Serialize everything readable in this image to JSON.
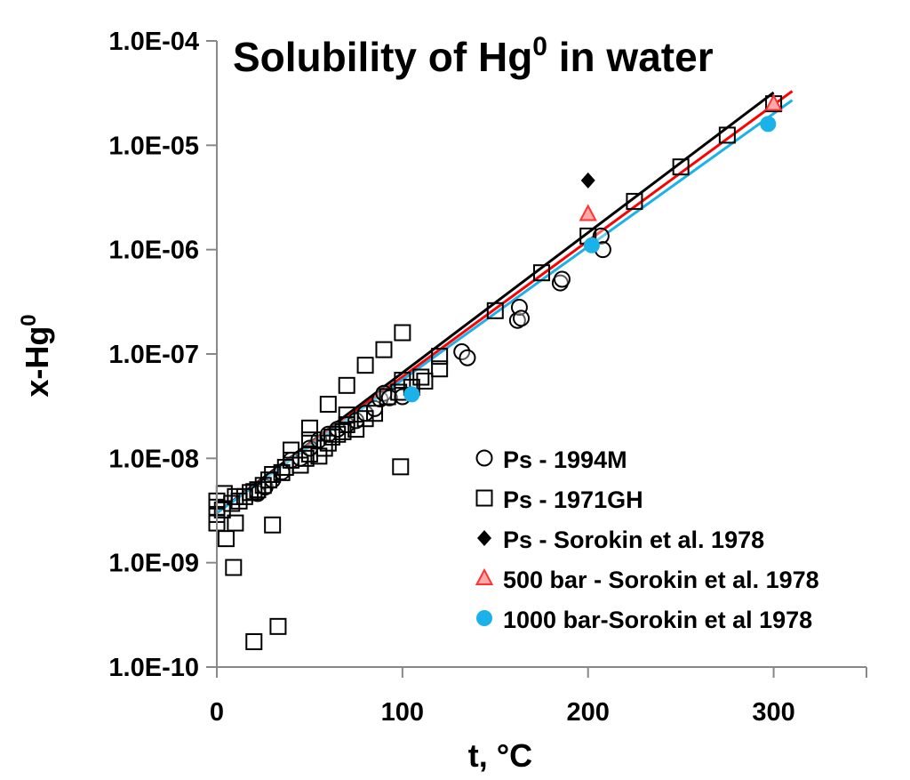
{
  "chart_data": {
    "type": "scatter",
    "title_main": "Solubility of Hg",
    "title_sup": "0",
    "title_end": " in water",
    "title_color": "#cc00cc",
    "xlabel": "t, °C",
    "ylabel_main": "x-Hg",
    "ylabel_sup": "0",
    "xlim": [
      0,
      350
    ],
    "ylim": [
      1e-10,
      0.0001
    ],
    "y_scale": "log",
    "x_ticks": [
      0,
      100,
      200,
      300
    ],
    "x_tick_labels": [
      "0",
      "100",
      "200",
      "300"
    ],
    "y_ticks": [
      1e-10,
      1e-09,
      1e-08,
      1e-07,
      1e-06,
      1e-05,
      0.0001
    ],
    "y_tick_labels": [
      "1.0E-10",
      "1.0E-09",
      "1.0E-08",
      "1.0E-07",
      "1.0E-06",
      "1.0E-05",
      "1.0E-04"
    ],
    "grid": false,
    "legend_position": "bottom-right",
    "series": [
      {
        "name": "Ps - 1994M",
        "marker": "open-circle",
        "color": "#000000",
        "points": [
          [
            22,
            4.6e-09
          ],
          [
            26,
            5.3e-09
          ],
          [
            30,
            6.2e-09
          ],
          [
            35,
            7.4e-09
          ],
          [
            40,
            9.6e-09
          ],
          [
            45,
            1e-08
          ],
          [
            50,
            1.25e-08
          ],
          [
            55,
            1.5e-08
          ],
          [
            60,
            1.7e-08
          ],
          [
            65,
            1.9e-08
          ],
          [
            70,
            2.1e-08
          ],
          [
            75,
            2.3e-08
          ],
          [
            80,
            2.7e-08
          ],
          [
            85,
            3e-08
          ],
          [
            88,
            3.7e-08
          ],
          [
            90,
            4.2e-08
          ],
          [
            93,
            3.8e-08
          ],
          [
            100,
            3.9e-08
          ],
          [
            132,
            1.05e-07
          ],
          [
            135,
            9.2e-08
          ],
          [
            162,
            2.1e-07
          ],
          [
            163,
            2.8e-07
          ],
          [
            164,
            2.2e-07
          ],
          [
            185,
            4.8e-07
          ],
          [
            186,
            5.2e-07
          ],
          [
            207,
            1.35e-06
          ],
          [
            208,
            1e-06
          ]
        ]
      },
      {
        "name": "Ps - 1971GH",
        "marker": "open-square",
        "color": "#000000",
        "points": [
          [
            0,
            2.4e-09
          ],
          [
            0,
            2.9e-09
          ],
          [
            0,
            3.4e-09
          ],
          [
            0,
            3.9e-09
          ],
          [
            3,
            3.2e-09
          ],
          [
            4,
            4.6e-09
          ],
          [
            5,
            1.7e-09
          ],
          [
            8,
            3.7e-09
          ],
          [
            9,
            9e-10
          ],
          [
            10,
            2.4e-09
          ],
          [
            10,
            4.3e-09
          ],
          [
            12,
            3.9e-09
          ],
          [
            15,
            4.3e-09
          ],
          [
            18,
            4.7e-09
          ],
          [
            20,
            4.8e-09
          ],
          [
            20,
            1.75e-10
          ],
          [
            22,
            5e-09
          ],
          [
            25,
            5.5e-09
          ],
          [
            28,
            6.2e-09
          ],
          [
            30,
            7e-09
          ],
          [
            30,
            2.3e-09
          ],
          [
            33,
            2.45e-10
          ],
          [
            35,
            7.3e-09
          ],
          [
            37,
            8.2e-09
          ],
          [
            40,
            9.6e-09
          ],
          [
            40,
            1.2e-08
          ],
          [
            45,
            8.6e-09
          ],
          [
            48,
            1e-08
          ],
          [
            50,
            1.1e-08
          ],
          [
            50,
            1.5e-08
          ],
          [
            50,
            1.95e-08
          ],
          [
            55,
            1.05e-08
          ],
          [
            58,
            1.25e-08
          ],
          [
            60,
            1.4e-08
          ],
          [
            60,
            3.3e-08
          ],
          [
            62,
            1.6e-08
          ],
          [
            65,
            1.7e-08
          ],
          [
            68,
            1.8e-08
          ],
          [
            70,
            2.1e-08
          ],
          [
            70,
            2.6e-08
          ],
          [
            70,
            5e-08
          ],
          [
            75,
            1.9e-08
          ],
          [
            80,
            2.4e-08
          ],
          [
            80,
            7.8e-08
          ],
          [
            85,
            2.7e-08
          ],
          [
            90,
            1.1e-07
          ],
          [
            92,
            3.9e-08
          ],
          [
            98,
            4.3e-08
          ],
          [
            99,
            8.3e-09
          ],
          [
            100,
            5.6e-08
          ],
          [
            100,
            1.6e-07
          ],
          [
            105,
            4.8e-08
          ],
          [
            110,
            6e-08
          ],
          [
            112,
            5.5e-08
          ],
          [
            120,
            7.2e-08
          ],
          [
            120,
            9.5e-08
          ],
          [
            150,
            2.6e-07
          ],
          [
            175,
            6e-07
          ],
          [
            200,
            1.35e-06
          ],
          [
            225,
            2.9e-06
          ],
          [
            250,
            6.2e-06
          ],
          [
            275,
            1.25e-05
          ],
          [
            300,
            2.5e-05
          ]
        ]
      },
      {
        "name": "Ps - Sorokin et al. 1978",
        "marker": "filled-diamond",
        "color": "#000000",
        "points": [
          [
            200,
            4.6e-06
          ]
        ]
      },
      {
        "name": "500 bar - Sorokin et al. 1978",
        "marker": "triangle",
        "color": "#ff3333",
        "points": [
          [
            200,
            2.2e-06
          ],
          [
            300,
            2.5e-05
          ]
        ]
      },
      {
        "name": "1000 bar-Sorokin et al 1978",
        "marker": "filled-circle",
        "color": "#1ab2e8",
        "points": [
          [
            105,
            4.1e-08
          ],
          [
            202,
            1.1e-06
          ],
          [
            297,
            1.6e-05
          ]
        ]
      }
    ],
    "fit_lines": [
      {
        "color": "#000000",
        "points": [
          [
            0,
            3e-09
          ],
          [
            300,
            3.2e-05
          ]
        ]
      },
      {
        "color": "#ff0000",
        "points": [
          [
            0,
            3e-09
          ],
          [
            310,
            3.3e-05
          ]
        ]
      },
      {
        "color": "#1ab2e8",
        "points": [
          [
            0,
            3e-09
          ],
          [
            310,
            2.7e-05
          ]
        ]
      }
    ]
  }
}
